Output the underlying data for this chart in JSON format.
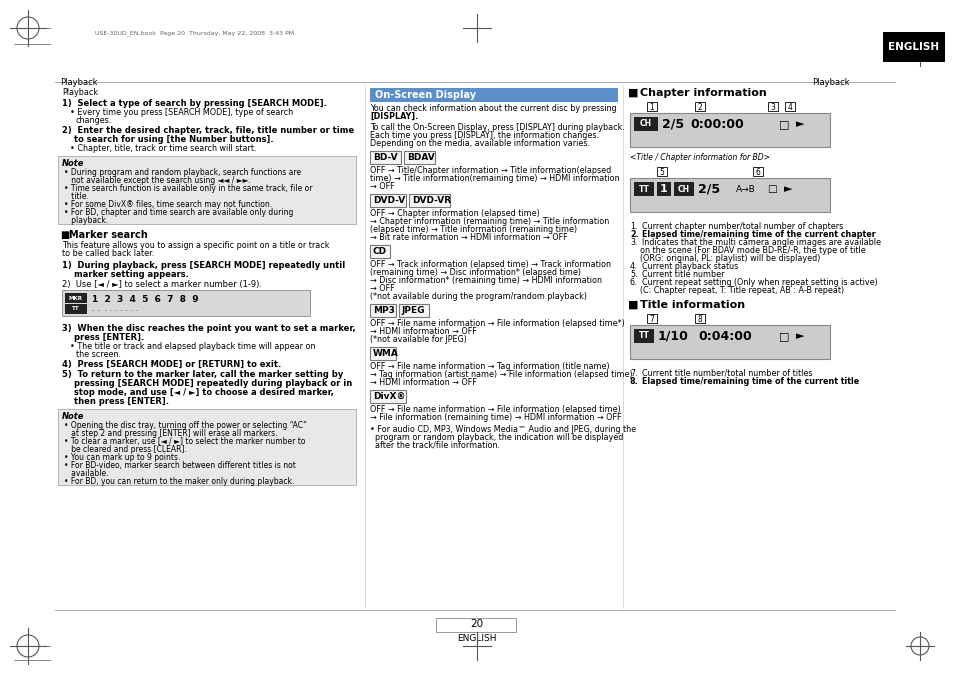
{
  "bg_color": "#ffffff",
  "top_meta": "USE-30UD_EN.book  Page 20  Thursday, May 22, 2008  3:43 PM",
  "page_number": "20",
  "page_label": "ENGLISH"
}
